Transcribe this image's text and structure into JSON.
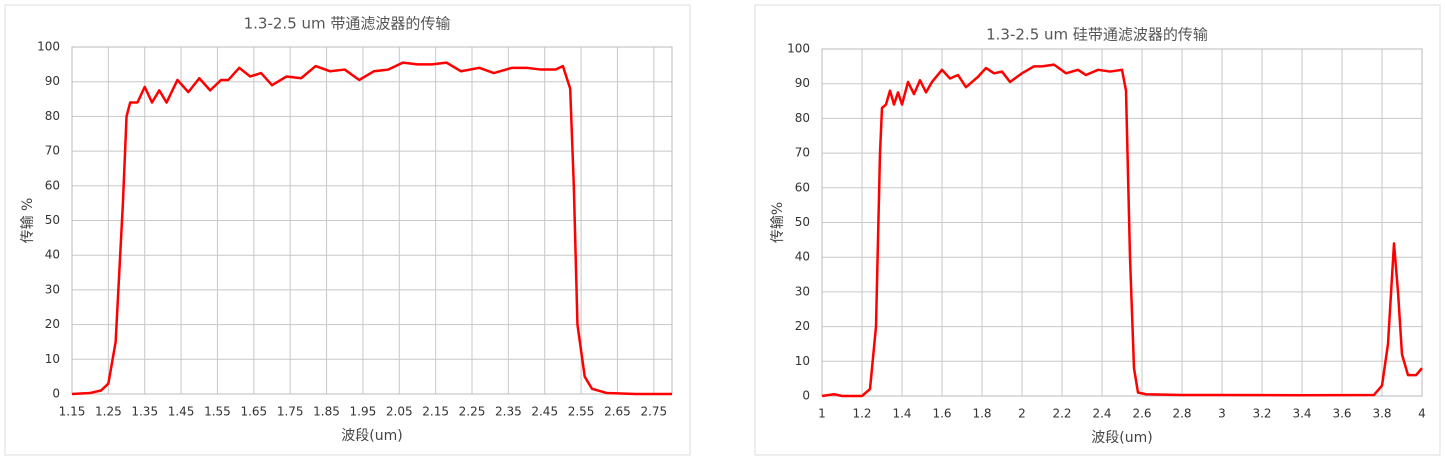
{
  "chart_data": [
    {
      "type": "line",
      "title": "1.3-2.5 um 带通滤波器的传输",
      "xlabel": "波段(um)",
      "ylabel": "传输 %",
      "xlim": [
        1.15,
        2.8
      ],
      "xticks": [
        1.15,
        1.25,
        1.35,
        1.45,
        1.55,
        1.65,
        1.75,
        1.85,
        1.95,
        2.05,
        2.15,
        2.25,
        2.35,
        2.45,
        2.55,
        2.65,
        2.75
      ],
      "ylim": [
        0,
        100
      ],
      "yticks": [
        0,
        10,
        20,
        30,
        40,
        50,
        60,
        70,
        80,
        90,
        100
      ],
      "grid": true,
      "x": [
        1.15,
        1.2,
        1.23,
        1.25,
        1.27,
        1.29,
        1.3,
        1.31,
        1.33,
        1.35,
        1.37,
        1.39,
        1.41,
        1.44,
        1.47,
        1.5,
        1.53,
        1.56,
        1.58,
        1.61,
        1.64,
        1.67,
        1.7,
        1.74,
        1.78,
        1.82,
        1.86,
        1.9,
        1.94,
        1.98,
        2.02,
        2.06,
        2.1,
        2.14,
        2.18,
        2.22,
        2.27,
        2.31,
        2.36,
        2.4,
        2.44,
        2.48,
        2.5,
        2.52,
        2.53,
        2.54,
        2.56,
        2.58,
        2.62,
        2.7,
        2.8
      ],
      "series": [
        {
          "color": "#ff0000",
          "values": [
            0,
            0.3,
            1,
            3,
            15,
            55,
            80,
            84,
            84,
            88.5,
            84,
            87.5,
            84,
            90.5,
            87,
            91,
            87.5,
            90.5,
            90.5,
            94,
            91.5,
            92.5,
            89,
            91.5,
            91,
            94.5,
            93,
            93.5,
            90.5,
            93,
            93.5,
            95.5,
            95,
            95,
            95.5,
            93,
            94,
            92.5,
            94,
            94,
            93.5,
            93.5,
            94.5,
            88,
            60,
            20,
            5,
            1.5,
            0.3,
            0,
            0
          ]
        }
      ]
    },
    {
      "type": "line",
      "title": "1.3-2.5 um 硅带通滤波器的传输",
      "xlabel": "波段(um)",
      "ylabel": "传输%",
      "xlim": [
        1,
        4
      ],
      "xticks": [
        1,
        1.2,
        1.4,
        1.6,
        1.8,
        2,
        2.2,
        2.4,
        2.6,
        2.8,
        3,
        3.2,
        3.4,
        3.6,
        3.8,
        4
      ],
      "ylim": [
        0,
        100
      ],
      "yticks": [
        0,
        10,
        20,
        30,
        40,
        50,
        60,
        70,
        80,
        90,
        100
      ],
      "grid": true,
      "x": [
        1,
        1.06,
        1.1,
        1.2,
        1.24,
        1.27,
        1.29,
        1.3,
        1.32,
        1.34,
        1.36,
        1.38,
        1.4,
        1.43,
        1.46,
        1.49,
        1.52,
        1.55,
        1.6,
        1.64,
        1.68,
        1.72,
        1.78,
        1.82,
        1.86,
        1.9,
        1.94,
        2,
        2.06,
        2.1,
        2.16,
        2.22,
        2.28,
        2.32,
        2.38,
        2.44,
        2.5,
        2.52,
        2.54,
        2.56,
        2.58,
        2.62,
        2.8,
        3.0,
        3.4,
        3.76,
        3.8,
        3.83,
        3.86,
        3.88,
        3.9,
        3.93,
        3.97,
        4
      ],
      "series": [
        {
          "color": "#ff0000",
          "values": [
            0,
            0.5,
            0,
            0,
            2,
            20,
            70,
            83,
            84,
            88,
            84,
            87.5,
            84,
            90.5,
            87,
            91,
            87.5,
            90.5,
            94,
            91.5,
            92.5,
            89,
            92,
            94.5,
            93,
            93.5,
            90.5,
            93,
            95,
            95,
            95.5,
            93,
            94,
            92.5,
            94,
            93.5,
            94,
            88,
            40,
            8,
            1,
            0.5,
            0.3,
            0.3,
            0.2,
            0.3,
            3,
            15,
            44,
            30,
            12,
            6,
            6,
            8
          ]
        }
      ]
    }
  ]
}
